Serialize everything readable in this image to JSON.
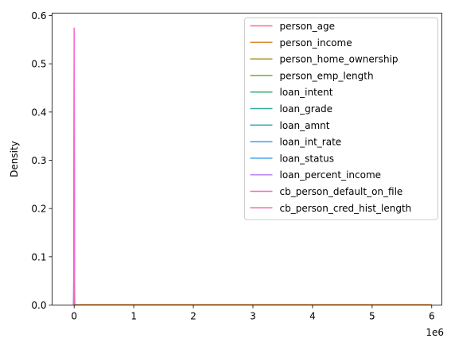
{
  "chart_data": {
    "type": "line",
    "xlabel": "",
    "ylabel": "Density",
    "x_offset_label": "1e6",
    "xlim": [
      -370000,
      6170000
    ],
    "ylim": [
      0,
      0.605
    ],
    "x_ticks": [
      0,
      1000000,
      2000000,
      3000000,
      4000000,
      5000000,
      6000000
    ],
    "x_tick_labels": [
      "0",
      "1",
      "2",
      "3",
      "4",
      "5",
      "6"
    ],
    "y_ticks": [
      0.0,
      0.1,
      0.2,
      0.3,
      0.4,
      0.5,
      0.6
    ],
    "y_tick_labels": [
      "0.0",
      "0.1",
      "0.2",
      "0.3",
      "0.4",
      "0.5",
      "0.6"
    ],
    "legend_position": "top-right",
    "series": [
      {
        "name": "person_age",
        "color": "#f77189",
        "peak_x": 0,
        "peak_y": 0.03,
        "x_max": 0
      },
      {
        "name": "person_income",
        "color": "#dc8932",
        "peak_x": 0,
        "peak_y": 0.0,
        "x_max": 6000000
      },
      {
        "name": "person_home_ownership",
        "color": "#ae9d31",
        "peak_x": 0,
        "peak_y": 0.135,
        "x_max": 0
      },
      {
        "name": "person_emp_length",
        "color": "#77ab31",
        "peak_x": 0,
        "peak_y": 0.08,
        "x_max": 0
      },
      {
        "name": "loan_intent",
        "color": "#33b07a",
        "peak_x": 0,
        "peak_y": 0.1,
        "x_max": 0
      },
      {
        "name": "loan_grade",
        "color": "#36ada4",
        "peak_x": 0,
        "peak_y": 0.12,
        "x_max": 0
      },
      {
        "name": "loan_amnt",
        "color": "#38aabd",
        "peak_x": 0,
        "peak_y": 0.0,
        "x_max": 35000
      },
      {
        "name": "loan_int_rate",
        "color": "#3ba3ec",
        "peak_x": 0,
        "peak_y": 0.14,
        "x_max": 0
      },
      {
        "name": "loan_status",
        "color": "#3ba3ec",
        "peak_x": 0,
        "peak_y": 0.5,
        "x_max": 0
      },
      {
        "name": "loan_percent_income",
        "color": "#bb83f4",
        "peak_x": 0,
        "peak_y": 0.3,
        "x_max": 0
      },
      {
        "name": "cb_person_default_on_file",
        "color": "#f564d4",
        "peak_x": 0,
        "peak_y": 0.575,
        "x_max": 0
      },
      {
        "name": "cb_person_cred_hist_length",
        "color": "#f667b7",
        "peak_x": 0,
        "peak_y": 0.06,
        "x_max": 0
      }
    ]
  }
}
